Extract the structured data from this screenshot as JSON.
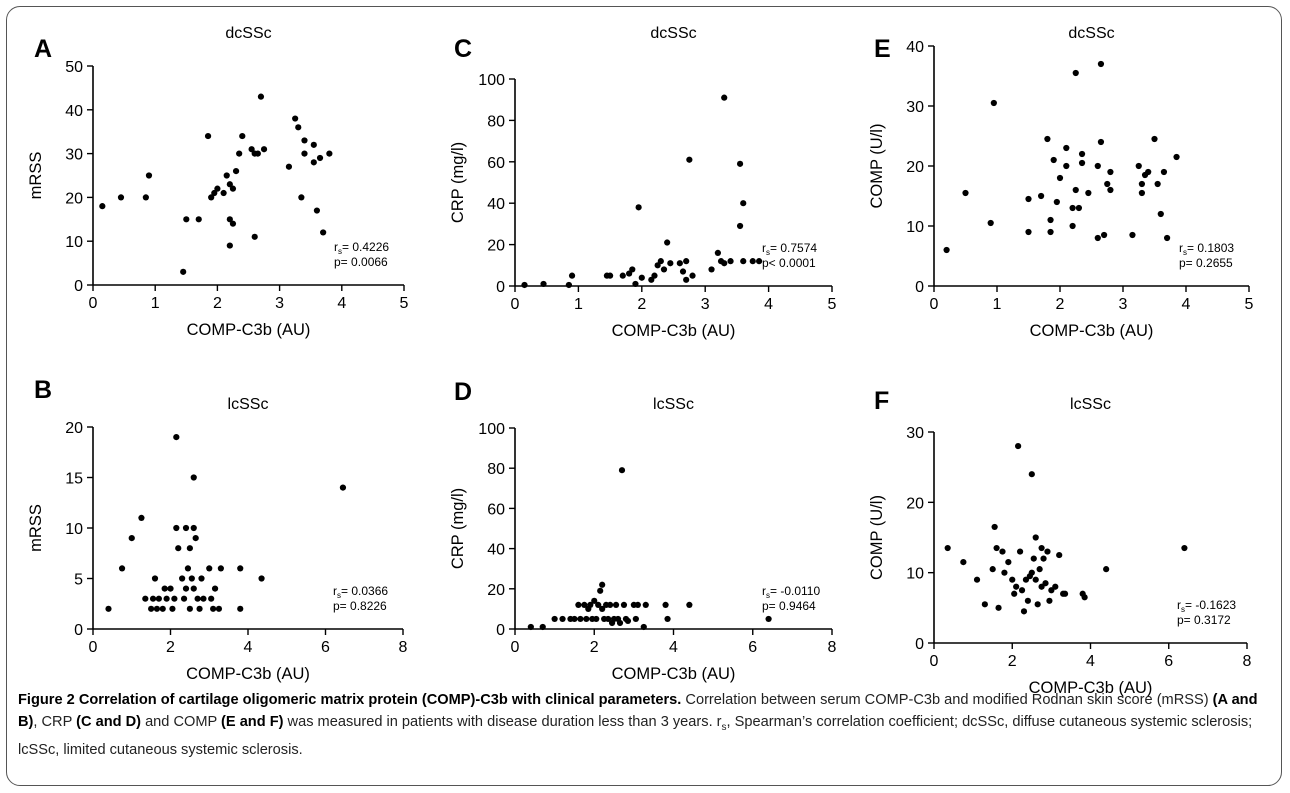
{
  "caption": {
    "lead": "Figure 2 Correlation of cartilage oligomeric matrix protein (COMP)-C3b with clinical parameters.",
    "s1": "Correlation between serum COMP-C3b and modified Rodnan skin score (mRSS)",
    "ab": "(A and B)",
    "s2": ", CRP",
    "cd": "(C and D)",
    "s3": "and COMP",
    "ef": "(E and F)",
    "s4": "was measured in patients with disease duration less than 3 years. r",
    "sub": "s",
    "s5": ", Spearman’s correlation coefficient; dcSSc, diffuse cutaneous systemic sclerosis; lcSSc, limited cutaneous systemic sclerosis."
  },
  "chart_data": [
    {
      "type": "scatter",
      "panel": "A",
      "title": "dcSSc",
      "xlabel": "COMP-C3b (AU)",
      "ylabel": "mRSS",
      "xlim": [
        0,
        5
      ],
      "ylim": [
        0,
        50
      ],
      "xticks": [
        0,
        1,
        2,
        3,
        4,
        5
      ],
      "yticks": [
        0,
        10,
        20,
        30,
        40,
        50
      ],
      "stat_r": "= 0.4226",
      "stat_p": "p= 0.0066",
      "points": [
        [
          0.15,
          18
        ],
        [
          0.45,
          20
        ],
        [
          0.85,
          20
        ],
        [
          0.9,
          25
        ],
        [
          1.45,
          3
        ],
        [
          1.5,
          15
        ],
        [
          1.7,
          15
        ],
        [
          1.85,
          34
        ],
        [
          1.9,
          20
        ],
        [
          1.95,
          21
        ],
        [
          2.0,
          22
        ],
        [
          2.1,
          21
        ],
        [
          2.15,
          25
        ],
        [
          2.2,
          23
        ],
        [
          2.2,
          15
        ],
        [
          2.2,
          9
        ],
        [
          2.25,
          14
        ],
        [
          2.25,
          22
        ],
        [
          2.3,
          26
        ],
        [
          2.35,
          30
        ],
        [
          2.4,
          34
        ],
        [
          2.55,
          31
        ],
        [
          2.6,
          30
        ],
        [
          2.6,
          11
        ],
        [
          2.65,
          30
        ],
        [
          2.7,
          43
        ],
        [
          2.75,
          31
        ],
        [
          3.15,
          27
        ],
        [
          3.25,
          38
        ],
        [
          3.3,
          36
        ],
        [
          3.35,
          20
        ],
        [
          3.4,
          33
        ],
        [
          3.4,
          30
        ],
        [
          3.55,
          32
        ],
        [
          3.55,
          28
        ],
        [
          3.6,
          17
        ],
        [
          3.65,
          29
        ],
        [
          3.7,
          12
        ],
        [
          3.8,
          30
        ]
      ]
    },
    {
      "type": "scatter",
      "panel": "B",
      "title": "lcSSc",
      "xlabel": "COMP-C3b (AU)",
      "ylabel": "mRSS",
      "xlim": [
        0,
        8
      ],
      "ylim": [
        0,
        20
      ],
      "xticks": [
        0,
        2,
        4,
        6,
        8
      ],
      "yticks": [
        0,
        5,
        10,
        15,
        20
      ],
      "stat_r": "= 0.0366",
      "stat_p": "p= 0.8226",
      "points": [
        [
          0.4,
          2
        ],
        [
          0.75,
          6
        ],
        [
          1.0,
          9
        ],
        [
          1.25,
          11
        ],
        [
          1.35,
          3
        ],
        [
          1.5,
          2
        ],
        [
          1.55,
          3
        ],
        [
          1.6,
          5
        ],
        [
          1.65,
          2
        ],
        [
          1.7,
          3
        ],
        [
          1.8,
          2
        ],
        [
          1.85,
          4
        ],
        [
          1.9,
          3
        ],
        [
          2.0,
          4
        ],
        [
          2.05,
          2
        ],
        [
          2.1,
          3
        ],
        [
          2.15,
          19
        ],
        [
          2.15,
          10
        ],
        [
          2.2,
          8
        ],
        [
          2.3,
          5
        ],
        [
          2.35,
          3
        ],
        [
          2.4,
          10
        ],
        [
          2.4,
          4
        ],
        [
          2.45,
          6
        ],
        [
          2.5,
          2
        ],
        [
          2.5,
          8
        ],
        [
          2.55,
          5
        ],
        [
          2.6,
          15
        ],
        [
          2.6,
          10
        ],
        [
          2.6,
          4
        ],
        [
          2.65,
          9
        ],
        [
          2.7,
          3
        ],
        [
          2.75,
          2
        ],
        [
          2.8,
          5
        ],
        [
          2.85,
          3
        ],
        [
          3.0,
          6
        ],
        [
          3.05,
          3
        ],
        [
          3.1,
          2
        ],
        [
          3.15,
          4
        ],
        [
          3.25,
          2
        ],
        [
          3.3,
          6
        ],
        [
          3.8,
          6
        ],
        [
          3.8,
          2
        ],
        [
          4.35,
          5
        ],
        [
          6.45,
          14
        ]
      ]
    },
    {
      "type": "scatter",
      "panel": "C",
      "title": "dcSSc",
      "xlabel": "COMP-C3b (AU)",
      "ylabel": "CRP (mg/l)",
      "xlim": [
        0,
        5
      ],
      "ylim": [
        0,
        100
      ],
      "xticks": [
        0,
        1,
        2,
        3,
        4,
        5
      ],
      "yticks": [
        0,
        20,
        40,
        60,
        80,
        100
      ],
      "stat_r": "= 0.7574",
      "stat_p": "p< 0.0001",
      "points": [
        [
          0.15,
          0.5
        ],
        [
          0.45,
          1
        ],
        [
          0.85,
          0.5
        ],
        [
          0.9,
          5
        ],
        [
          1.45,
          5
        ],
        [
          1.5,
          5
        ],
        [
          1.7,
          5
        ],
        [
          1.8,
          6
        ],
        [
          1.85,
          8
        ],
        [
          1.9,
          1
        ],
        [
          1.95,
          38
        ],
        [
          2.0,
          4
        ],
        [
          2.15,
          3
        ],
        [
          2.2,
          5
        ],
        [
          2.25,
          10
        ],
        [
          2.3,
          12
        ],
        [
          2.35,
          8
        ],
        [
          2.4,
          21
        ],
        [
          2.45,
          11
        ],
        [
          2.6,
          11
        ],
        [
          2.65,
          7
        ],
        [
          2.7,
          12
        ],
        [
          2.7,
          3
        ],
        [
          2.75,
          61
        ],
        [
          2.8,
          5
        ],
        [
          3.1,
          8
        ],
        [
          3.2,
          16
        ],
        [
          3.25,
          12
        ],
        [
          3.3,
          11
        ],
        [
          3.3,
          91
        ],
        [
          3.4,
          12
        ],
        [
          3.55,
          59
        ],
        [
          3.55,
          29
        ],
        [
          3.6,
          40
        ],
        [
          3.6,
          12
        ],
        [
          3.75,
          12
        ],
        [
          3.85,
          12
        ]
      ]
    },
    {
      "type": "scatter",
      "panel": "D",
      "title": "lcSSc",
      "xlabel": "COMP-C3b (AU)",
      "ylabel": "CRP (mg/l)",
      "xlim": [
        0,
        8
      ],
      "ylim": [
        0,
        100
      ],
      "xticks": [
        0,
        2,
        4,
        6,
        8
      ],
      "yticks": [
        0,
        20,
        40,
        60,
        80,
        100
      ],
      "stat_r": "= -0.0110",
      "stat_p": "p= 0.9464",
      "points": [
        [
          0.4,
          1
        ],
        [
          0.7,
          1
        ],
        [
          1.0,
          5
        ],
        [
          1.2,
          5
        ],
        [
          1.4,
          5
        ],
        [
          1.5,
          5
        ],
        [
          1.6,
          12
        ],
        [
          1.65,
          5
        ],
        [
          1.75,
          12
        ],
        [
          1.8,
          5
        ],
        [
          1.85,
          10
        ],
        [
          1.9,
          12
        ],
        [
          1.95,
          5
        ],
        [
          2.0,
          14
        ],
        [
          2.05,
          5
        ],
        [
          2.1,
          12
        ],
        [
          2.15,
          19
        ],
        [
          2.2,
          22
        ],
        [
          2.2,
          10
        ],
        [
          2.25,
          5
        ],
        [
          2.3,
          12
        ],
        [
          2.35,
          5
        ],
        [
          2.4,
          12
        ],
        [
          2.45,
          3
        ],
        [
          2.5,
          5
        ],
        [
          2.55,
          12
        ],
        [
          2.6,
          5
        ],
        [
          2.65,
          3
        ],
        [
          2.7,
          79
        ],
        [
          2.75,
          12
        ],
        [
          2.8,
          5
        ],
        [
          2.85,
          4
        ],
        [
          3.0,
          12
        ],
        [
          3.05,
          5
        ],
        [
          3.1,
          12
        ],
        [
          3.25,
          1
        ],
        [
          3.3,
          12
        ],
        [
          3.8,
          12
        ],
        [
          3.85,
          5
        ],
        [
          4.4,
          12
        ],
        [
          6.4,
          5
        ]
      ]
    },
    {
      "type": "scatter",
      "panel": "E",
      "title": "dcSSc",
      "xlabel": "COMP-C3b (AU)",
      "ylabel": "COMP (U/l)",
      "xlim": [
        0,
        5
      ],
      "ylim": [
        0,
        40
      ],
      "xticks": [
        0,
        1,
        2,
        3,
        4,
        5
      ],
      "yticks": [
        0,
        10,
        20,
        30,
        40
      ],
      "stat_r": "= 0.1803",
      "stat_p": "p= 0.2655",
      "points": [
        [
          0.2,
          6
        ],
        [
          0.5,
          15.5
        ],
        [
          0.9,
          10.5
        ],
        [
          0.95,
          30.5
        ],
        [
          1.5,
          14.5
        ],
        [
          1.5,
          9
        ],
        [
          1.7,
          15
        ],
        [
          1.8,
          24.5
        ],
        [
          1.85,
          9
        ],
        [
          1.85,
          11
        ],
        [
          1.9,
          21
        ],
        [
          1.95,
          14
        ],
        [
          2.0,
          18
        ],
        [
          2.1,
          23
        ],
        [
          2.1,
          20
        ],
        [
          2.2,
          13
        ],
        [
          2.2,
          10
        ],
        [
          2.25,
          16
        ],
        [
          2.25,
          35.5
        ],
        [
          2.3,
          13
        ],
        [
          2.35,
          20.5
        ],
        [
          2.35,
          22
        ],
        [
          2.45,
          15.5
        ],
        [
          2.6,
          20
        ],
        [
          2.6,
          8
        ],
        [
          2.65,
          37
        ],
        [
          2.65,
          24
        ],
        [
          2.7,
          8.5
        ],
        [
          2.75,
          17
        ],
        [
          2.8,
          19
        ],
        [
          2.8,
          16
        ],
        [
          3.15,
          8.5
        ],
        [
          3.25,
          20
        ],
        [
          3.3,
          15.5
        ],
        [
          3.3,
          17
        ],
        [
          3.35,
          18.5
        ],
        [
          3.4,
          19
        ],
        [
          3.5,
          24.5
        ],
        [
          3.55,
          17
        ],
        [
          3.6,
          12
        ],
        [
          3.65,
          19
        ],
        [
          3.7,
          8
        ],
        [
          3.85,
          21.5
        ]
      ]
    },
    {
      "type": "scatter",
      "panel": "F",
      "title": "lcSSc",
      "xlabel": "COMP-C3b (AU)",
      "ylabel": "COMP (U/l)",
      "xlim": [
        0,
        8
      ],
      "ylim": [
        0,
        30
      ],
      "xticks": [
        0,
        2,
        4,
        6,
        8
      ],
      "yticks": [
        0,
        10,
        20,
        30
      ],
      "stat_r": "= -0.1623",
      "stat_p": "p= 0.3172",
      "points": [
        [
          0.35,
          13.5
        ],
        [
          0.75,
          11.5
        ],
        [
          1.1,
          9
        ],
        [
          1.3,
          5.5
        ],
        [
          1.5,
          10.5
        ],
        [
          1.55,
          16.5
        ],
        [
          1.6,
          13.5
        ],
        [
          1.65,
          5
        ],
        [
          1.75,
          13
        ],
        [
          1.8,
          10
        ],
        [
          1.9,
          11.5
        ],
        [
          2.0,
          9
        ],
        [
          2.05,
          7
        ],
        [
          2.1,
          8
        ],
        [
          2.15,
          28
        ],
        [
          2.2,
          13
        ],
        [
          2.25,
          7.5
        ],
        [
          2.3,
          4.5
        ],
        [
          2.35,
          9
        ],
        [
          2.4,
          6
        ],
        [
          2.45,
          9.5
        ],
        [
          2.5,
          24
        ],
        [
          2.5,
          10
        ],
        [
          2.55,
          12
        ],
        [
          2.6,
          15
        ],
        [
          2.6,
          9
        ],
        [
          2.65,
          5.5
        ],
        [
          2.7,
          10.5
        ],
        [
          2.75,
          13.5
        ],
        [
          2.75,
          8
        ],
        [
          2.8,
          12
        ],
        [
          2.85,
          8.5
        ],
        [
          2.9,
          13
        ],
        [
          2.95,
          6
        ],
        [
          3.0,
          7.5
        ],
        [
          3.1,
          8
        ],
        [
          3.2,
          12.5
        ],
        [
          3.3,
          7
        ],
        [
          3.35,
          7
        ],
        [
          3.8,
          7
        ],
        [
          3.85,
          6.5
        ],
        [
          4.4,
          10.5
        ],
        [
          6.4,
          13.5
        ]
      ]
    }
  ]
}
